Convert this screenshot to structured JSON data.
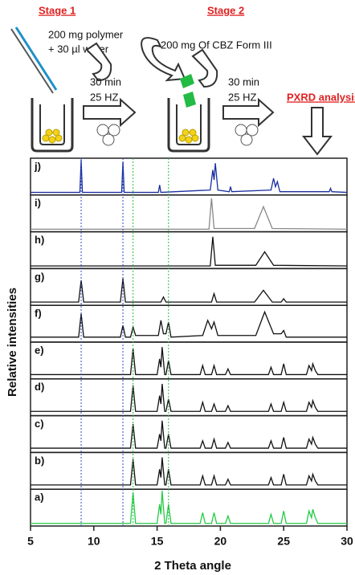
{
  "stage1": {
    "title": "Stage 1",
    "line1": "200 mg polymer",
    "line2": "+ 30 µl water",
    "time": "30 min",
    "freq": "25 HZ"
  },
  "stage2": {
    "title": "Stage 2",
    "line1": "200 mg Of CBZ Form III",
    "time": "30 min",
    "freq": "25 HZ"
  },
  "analysis": "PXRD analysis",
  "chart_data": {
    "type": "line",
    "xlabel": "2 Theta angle",
    "ylabel": "Relative intensities",
    "xlim": [
      5,
      30
    ],
    "xticks": [
      5,
      10,
      15,
      20,
      25,
      30
    ],
    "ylim": [
      0,
      1
    ],
    "reference_lines": [
      {
        "x": 9.0,
        "color": "#2a4bd0"
      },
      {
        "x": 12.3,
        "color": "#2a4bd0"
      },
      {
        "x": 13.1,
        "color": "#22bb44"
      },
      {
        "x": 15.9,
        "color": "#22bb44"
      }
    ],
    "series": [
      {
        "name": "j)",
        "color": "#1a2f9e",
        "x": [
          5,
          8.9,
          9.0,
          9.1,
          12.2,
          12.3,
          12.4,
          15.1,
          15.2,
          15.3,
          19.2,
          19.4,
          19.5,
          19.6,
          19.8,
          20.7,
          20.8,
          20.9,
          24.0,
          24.2,
          24.35,
          24.5,
          24.7,
          28.6,
          28.7,
          28.8,
          30
        ],
        "values": [
          0.03,
          0.03,
          1.0,
          0.03,
          0.03,
          0.95,
          0.03,
          0.03,
          0.25,
          0.03,
          0.1,
          0.7,
          0.4,
          0.9,
          0.1,
          0.05,
          0.2,
          0.05,
          0.1,
          0.45,
          0.2,
          0.35,
          0.05,
          0.05,
          0.15,
          0.05,
          0.03
        ]
      },
      {
        "name": "i)",
        "color": "#888888",
        "x": [
          5,
          19.1,
          19.3,
          19.5,
          22.7,
          23.4,
          24.1,
          30
        ],
        "values": [
          0.03,
          0.03,
          0.95,
          0.05,
          0.05,
          0.7,
          0.05,
          0.03
        ]
      },
      {
        "name": "h)",
        "color": "#111111",
        "x": [
          5,
          19.2,
          19.4,
          19.6,
          22.8,
          23.5,
          24.2,
          30
        ],
        "values": [
          0.03,
          0.03,
          0.9,
          0.05,
          0.05,
          0.45,
          0.05,
          0.03
        ]
      },
      {
        "name": "g)",
        "color": "#111111",
        "x": [
          5,
          8.8,
          9.0,
          9.2,
          12.1,
          12.3,
          12.5,
          15.3,
          15.5,
          15.7,
          19.3,
          19.5,
          19.7,
          22.7,
          23.4,
          24.1,
          24.8,
          25.0,
          25.2,
          30
        ],
        "values": [
          0.05,
          0.05,
          0.7,
          0.05,
          0.05,
          0.75,
          0.05,
          0.05,
          0.2,
          0.05,
          0.05,
          0.3,
          0.05,
          0.05,
          0.4,
          0.05,
          0.05,
          0.15,
          0.05,
          0.05
        ]
      },
      {
        "name": "f)",
        "color": "#111111",
        "x": [
          5,
          8.8,
          9.0,
          9.2,
          12.1,
          12.3,
          12.5,
          12.9,
          13.1,
          13.3,
          15.1,
          15.3,
          15.5,
          15.7,
          15.9,
          16.1,
          18.6,
          19.0,
          19.3,
          19.5,
          19.8,
          22.8,
          23.5,
          24.2,
          24.8,
          25.0,
          25.2,
          30
        ],
        "values": [
          0.1,
          0.1,
          0.8,
          0.1,
          0.1,
          0.45,
          0.1,
          0.1,
          0.4,
          0.15,
          0.15,
          0.6,
          0.2,
          0.2,
          0.55,
          0.1,
          0.15,
          0.6,
          0.35,
          0.55,
          0.15,
          0.15,
          0.85,
          0.2,
          0.2,
          0.3,
          0.1,
          0.1
        ]
      },
      {
        "name": "e)",
        "color": "#111111",
        "x": [
          5,
          12.9,
          13.1,
          13.3,
          15.0,
          15.2,
          15.3,
          15.4,
          15.6,
          15.7,
          15.9,
          16.1,
          18.4,
          18.6,
          18.8,
          19.3,
          19.5,
          19.7,
          20.4,
          20.6,
          20.8,
          23.8,
          24.0,
          24.2,
          24.8,
          25.0,
          25.2,
          26.8,
          27.0,
          27.2,
          27.3,
          27.5,
          27.7,
          30
        ],
        "values": [
          0.08,
          0.08,
          0.85,
          0.08,
          0.08,
          0.55,
          0.3,
          0.9,
          0.08,
          0.08,
          0.5,
          0.08,
          0.08,
          0.35,
          0.08,
          0.08,
          0.35,
          0.08,
          0.08,
          0.25,
          0.08,
          0.08,
          0.3,
          0.08,
          0.08,
          0.4,
          0.08,
          0.08,
          0.35,
          0.2,
          0.4,
          0.2,
          0.08,
          0.08
        ]
      },
      {
        "name": "d)",
        "color": "#111111",
        "x": [
          5,
          12.9,
          13.1,
          13.3,
          15.0,
          15.2,
          15.3,
          15.4,
          15.6,
          15.7,
          15.9,
          16.1,
          18.4,
          18.6,
          18.8,
          19.3,
          19.5,
          19.7,
          20.4,
          20.6,
          20.8,
          23.8,
          24.0,
          24.2,
          24.8,
          25.0,
          25.2,
          26.8,
          27.0,
          27.2,
          27.3,
          27.5,
          27.7,
          30
        ],
        "values": [
          0.08,
          0.08,
          0.85,
          0.08,
          0.08,
          0.55,
          0.3,
          0.9,
          0.08,
          0.08,
          0.45,
          0.08,
          0.08,
          0.35,
          0.08,
          0.08,
          0.3,
          0.08,
          0.08,
          0.25,
          0.08,
          0.08,
          0.3,
          0.08,
          0.08,
          0.35,
          0.08,
          0.08,
          0.35,
          0.2,
          0.4,
          0.2,
          0.08,
          0.08
        ]
      },
      {
        "name": "c)",
        "color": "#111111",
        "x": [
          5,
          12.9,
          13.1,
          13.3,
          15.0,
          15.2,
          15.3,
          15.4,
          15.6,
          15.7,
          15.9,
          16.1,
          18.4,
          18.6,
          18.8,
          19.3,
          19.5,
          19.7,
          20.4,
          20.6,
          20.8,
          23.8,
          24.0,
          24.2,
          24.8,
          25.0,
          25.2,
          26.8,
          27.0,
          27.2,
          27.3,
          27.5,
          27.7,
          30
        ],
        "values": [
          0.08,
          0.08,
          0.8,
          0.08,
          0.08,
          0.5,
          0.3,
          0.9,
          0.08,
          0.08,
          0.5,
          0.08,
          0.08,
          0.3,
          0.08,
          0.08,
          0.35,
          0.08,
          0.08,
          0.25,
          0.08,
          0.08,
          0.3,
          0.08,
          0.08,
          0.4,
          0.08,
          0.08,
          0.35,
          0.2,
          0.4,
          0.2,
          0.08,
          0.08
        ]
      },
      {
        "name": "b)",
        "color": "#111111",
        "x": [
          5,
          12.9,
          13.1,
          13.3,
          15.0,
          15.2,
          15.3,
          15.4,
          15.6,
          15.7,
          15.9,
          16.1,
          18.4,
          18.6,
          18.8,
          19.3,
          19.5,
          19.7,
          20.4,
          20.6,
          20.8,
          23.8,
          24.0,
          24.2,
          24.8,
          25.0,
          25.2,
          26.8,
          27.0,
          27.2,
          27.3,
          27.5,
          27.7,
          30
        ],
        "values": [
          0.08,
          0.08,
          0.85,
          0.08,
          0.08,
          0.55,
          0.3,
          0.9,
          0.08,
          0.08,
          0.55,
          0.08,
          0.08,
          0.35,
          0.08,
          0.08,
          0.35,
          0.08,
          0.08,
          0.25,
          0.08,
          0.08,
          0.3,
          0.08,
          0.08,
          0.4,
          0.08,
          0.08,
          0.35,
          0.2,
          0.4,
          0.2,
          0.08,
          0.08
        ]
      },
      {
        "name": "a)",
        "color": "#22cc44",
        "x": [
          5,
          12.9,
          13.1,
          13.3,
          15.0,
          15.2,
          15.3,
          15.4,
          15.6,
          15.7,
          15.9,
          16.1,
          18.4,
          18.6,
          18.8,
          19.3,
          19.5,
          19.7,
          20.4,
          20.6,
          20.8,
          23.8,
          24.0,
          24.2,
          24.8,
          25.0,
          25.2,
          26.8,
          27.0,
          27.2,
          27.3,
          27.5,
          27.7,
          30
        ],
        "values": [
          0.03,
          0.03,
          0.95,
          0.03,
          0.03,
          0.6,
          0.3,
          1.0,
          0.03,
          0.03,
          0.6,
          0.03,
          0.03,
          0.35,
          0.03,
          0.03,
          0.35,
          0.03,
          0.03,
          0.25,
          0.03,
          0.03,
          0.3,
          0.03,
          0.03,
          0.4,
          0.03,
          0.03,
          0.4,
          0.2,
          0.45,
          0.2,
          0.03,
          0.03
        ]
      }
    ]
  }
}
